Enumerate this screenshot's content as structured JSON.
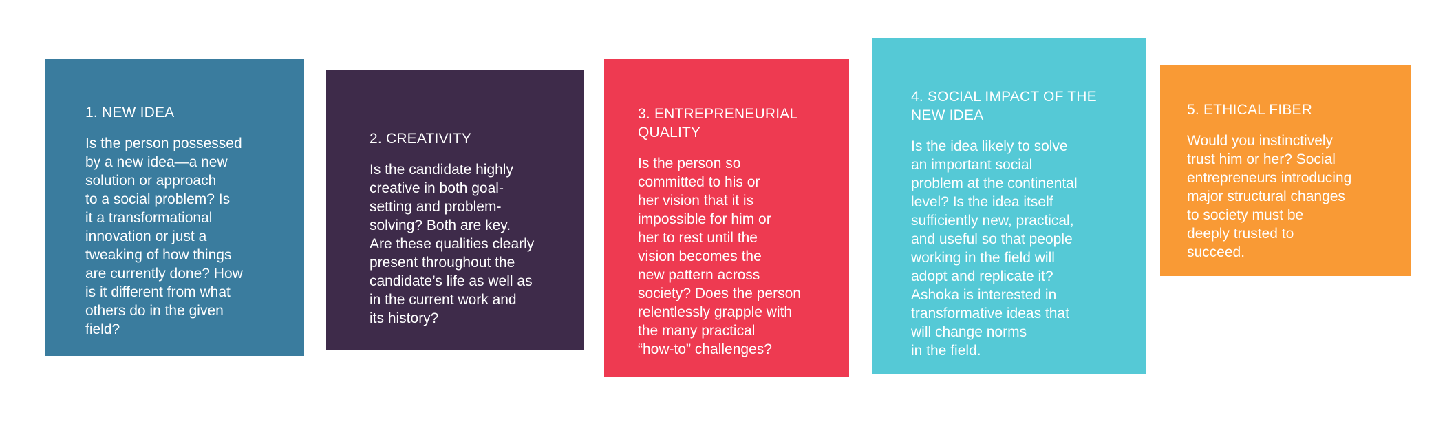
{
  "colors": {
    "card1": "#3A7C9E",
    "card2": "#3E2B4A",
    "card3": "#EE3A51",
    "card4": "#55C9D6",
    "card5": "#F99A35"
  },
  "cards": [
    {
      "title": "1. NEW IDEA",
      "body": "Is the person possessed\nby a new idea—a new\nsolution or approach\nto a social problem? Is\nit a transformational\ninnovation or just a\ntweaking of how things\nare currently done? How\nis it different from what\nothers do in the given\nfield?"
    },
    {
      "title": "2. CREATIVITY",
      "body": "Is the candidate highly\ncreative in both goal-\nsetting and problem-\nsolving? Both are key.\nAre these qualities clearly\npresent throughout the\ncandidate’s life as well as\nin the current work and\nits history?"
    },
    {
      "title": "3. ENTREPRENEURIAL\nQUALITY",
      "body": "Is the person so\ncommitted to his or\nher vision that it is\nimpossible for him or\nher to rest until the\nvision becomes the\nnew pattern across\nsociety? Does the person\nrelentlessly grapple with\nthe many practical\n“how-to” challenges?"
    },
    {
      "title": "4. SOCIAL IMPACT OF THE\nNEW IDEA",
      "body": "Is the idea likely to solve\nan important social\nproblem at the continental\nlevel? Is the idea itself\nsufficiently new, practical,\nand useful so that people\nworking in the field will\nadopt and replicate it?\nAshoka is interested in\ntransformative ideas that\nwill change norms\nin the field."
    },
    {
      "title": "5. ETHICAL FIBER",
      "body": "Would you instinctively\ntrust him or her? Social\nentrepreneurs introducing\nmajor structural changes\nto society must be\ndeeply trusted to\nsucceed."
    }
  ]
}
